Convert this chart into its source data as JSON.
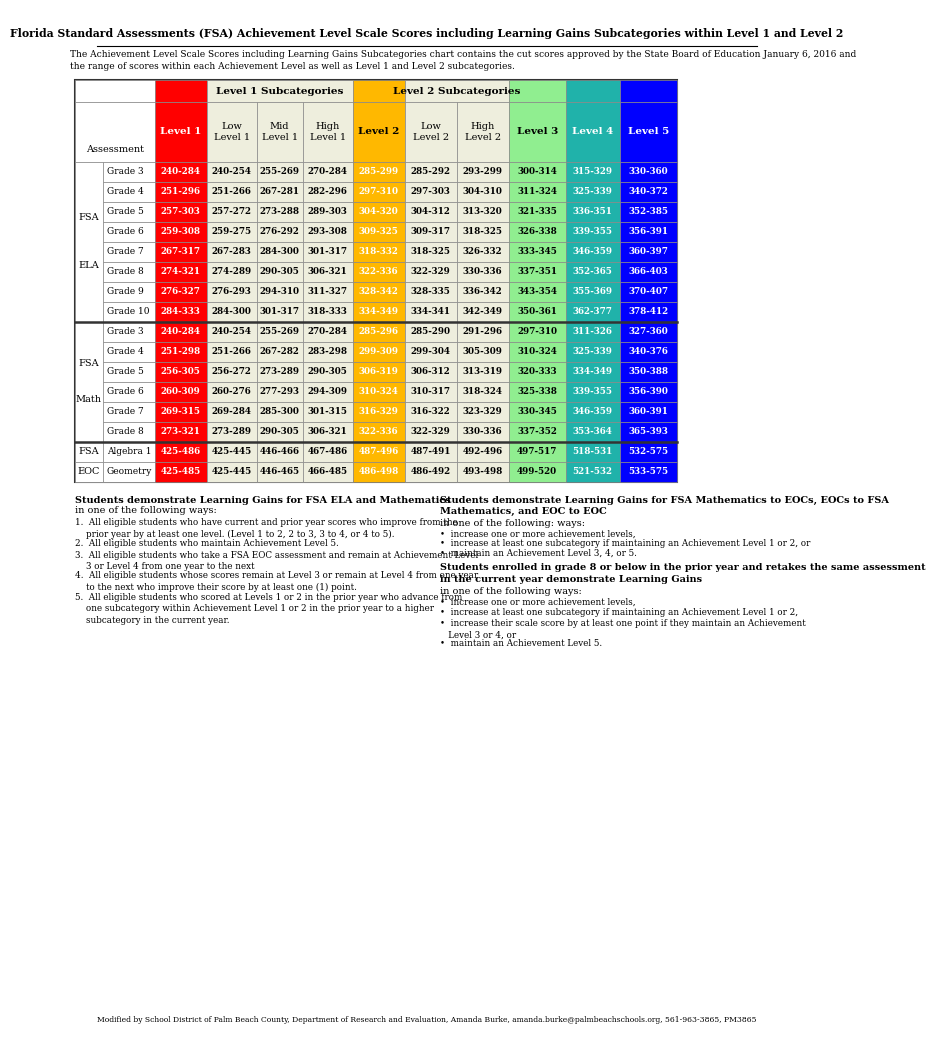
{
  "title": "Florida Standard Assessments (FSA) Achievement Level Scale Scores including Learning Gains Subcategories within Level 1 and Level 2",
  "subtitle_line1": "The Achievement Level Scale Scores including Learning Gains Subcategories chart contains the cut scores approved by the State Board of Education January 6, 2016 and",
  "subtitle_line2": "the range of scores within each Achievement Level as well as Level 1 and Level 2 subcategories.",
  "fsa_ela_rows": [
    {
      "grade": "Grade 3",
      "data": [
        "240-284",
        "240-254",
        "255-269",
        "270-284",
        "285-299",
        "285-292",
        "293-299",
        "300-314",
        "315-329",
        "330-360"
      ]
    },
    {
      "grade": "Grade 4",
      "data": [
        "251-296",
        "251-266",
        "267-281",
        "282-296",
        "297-310",
        "297-303",
        "304-310",
        "311-324",
        "325-339",
        "340-372"
      ]
    },
    {
      "grade": "Grade 5",
      "data": [
        "257-303",
        "257-272",
        "273-288",
        "289-303",
        "304-320",
        "304-312",
        "313-320",
        "321-335",
        "336-351",
        "352-385"
      ]
    },
    {
      "grade": "Grade 6",
      "data": [
        "259-308",
        "259-275",
        "276-292",
        "293-308",
        "309-325",
        "309-317",
        "318-325",
        "326-338",
        "339-355",
        "356-391"
      ]
    },
    {
      "grade": "Grade 7",
      "data": [
        "267-317",
        "267-283",
        "284-300",
        "301-317",
        "318-332",
        "318-325",
        "326-332",
        "333-345",
        "346-359",
        "360-397"
      ]
    },
    {
      "grade": "Grade 8",
      "data": [
        "274-321",
        "274-289",
        "290-305",
        "306-321",
        "322-336",
        "322-329",
        "330-336",
        "337-351",
        "352-365",
        "366-403"
      ]
    },
    {
      "grade": "Grade 9",
      "data": [
        "276-327",
        "276-293",
        "294-310",
        "311-327",
        "328-342",
        "328-335",
        "336-342",
        "343-354",
        "355-369",
        "370-407"
      ]
    },
    {
      "grade": "Grade 10",
      "data": [
        "284-333",
        "284-300",
        "301-317",
        "318-333",
        "334-349",
        "334-341",
        "342-349",
        "350-361",
        "362-377",
        "378-412"
      ]
    }
  ],
  "fsa_math_rows": [
    {
      "grade": "Grade 3",
      "data": [
        "240-284",
        "240-254",
        "255-269",
        "270-284",
        "285-296",
        "285-290",
        "291-296",
        "297-310",
        "311-326",
        "327-360"
      ]
    },
    {
      "grade": "Grade 4",
      "data": [
        "251-298",
        "251-266",
        "267-282",
        "283-298",
        "299-309",
        "299-304",
        "305-309",
        "310-324",
        "325-339",
        "340-376"
      ]
    },
    {
      "grade": "Grade 5",
      "data": [
        "256-305",
        "256-272",
        "273-289",
        "290-305",
        "306-319",
        "306-312",
        "313-319",
        "320-333",
        "334-349",
        "350-388"
      ]
    },
    {
      "grade": "Grade 6",
      "data": [
        "260-309",
        "260-276",
        "277-293",
        "294-309",
        "310-324",
        "310-317",
        "318-324",
        "325-338",
        "339-355",
        "356-390"
      ]
    },
    {
      "grade": "Grade 7",
      "data": [
        "269-315",
        "269-284",
        "285-300",
        "301-315",
        "316-329",
        "316-322",
        "323-329",
        "330-345",
        "346-359",
        "360-391"
      ]
    },
    {
      "grade": "Grade 8",
      "data": [
        "273-321",
        "273-289",
        "290-305",
        "306-321",
        "322-336",
        "322-329",
        "330-336",
        "337-352",
        "353-364",
        "365-393"
      ]
    }
  ],
  "fsa_eoc_rows": [
    {
      "grade": "Algebra 1",
      "data": [
        "425-486",
        "425-445",
        "446-466",
        "467-486",
        "487-496",
        "487-491",
        "492-496",
        "497-517",
        "518-531",
        "532-575"
      ]
    },
    {
      "grade": "Geometry",
      "data": [
        "425-485",
        "425-445",
        "446-465",
        "466-485",
        "486-498",
        "486-492",
        "493-498",
        "499-520",
        "521-532",
        "533-575"
      ]
    }
  ],
  "col_bg": [
    "#FF0000",
    "#EEEEDD",
    "#EEEEDD",
    "#EEEEDD",
    "#FFB800",
    "#EEEEDD",
    "#EEEEDD",
    "#90EE90",
    "#20B2AA",
    "#0000FF"
  ],
  "col_fg": [
    "#FFFFFF",
    "#000000",
    "#000000",
    "#000000",
    "#FFFFFF",
    "#000000",
    "#000000",
    "#000000",
    "#FFFFFF",
    "#FFFFFF"
  ],
  "footer_note": "Modified by School District of Palm Beach County, Department of Research and Evaluation, Amanda Burke, amanda.burke@palmbeachschools.org, 561-963-3865, PM3865"
}
